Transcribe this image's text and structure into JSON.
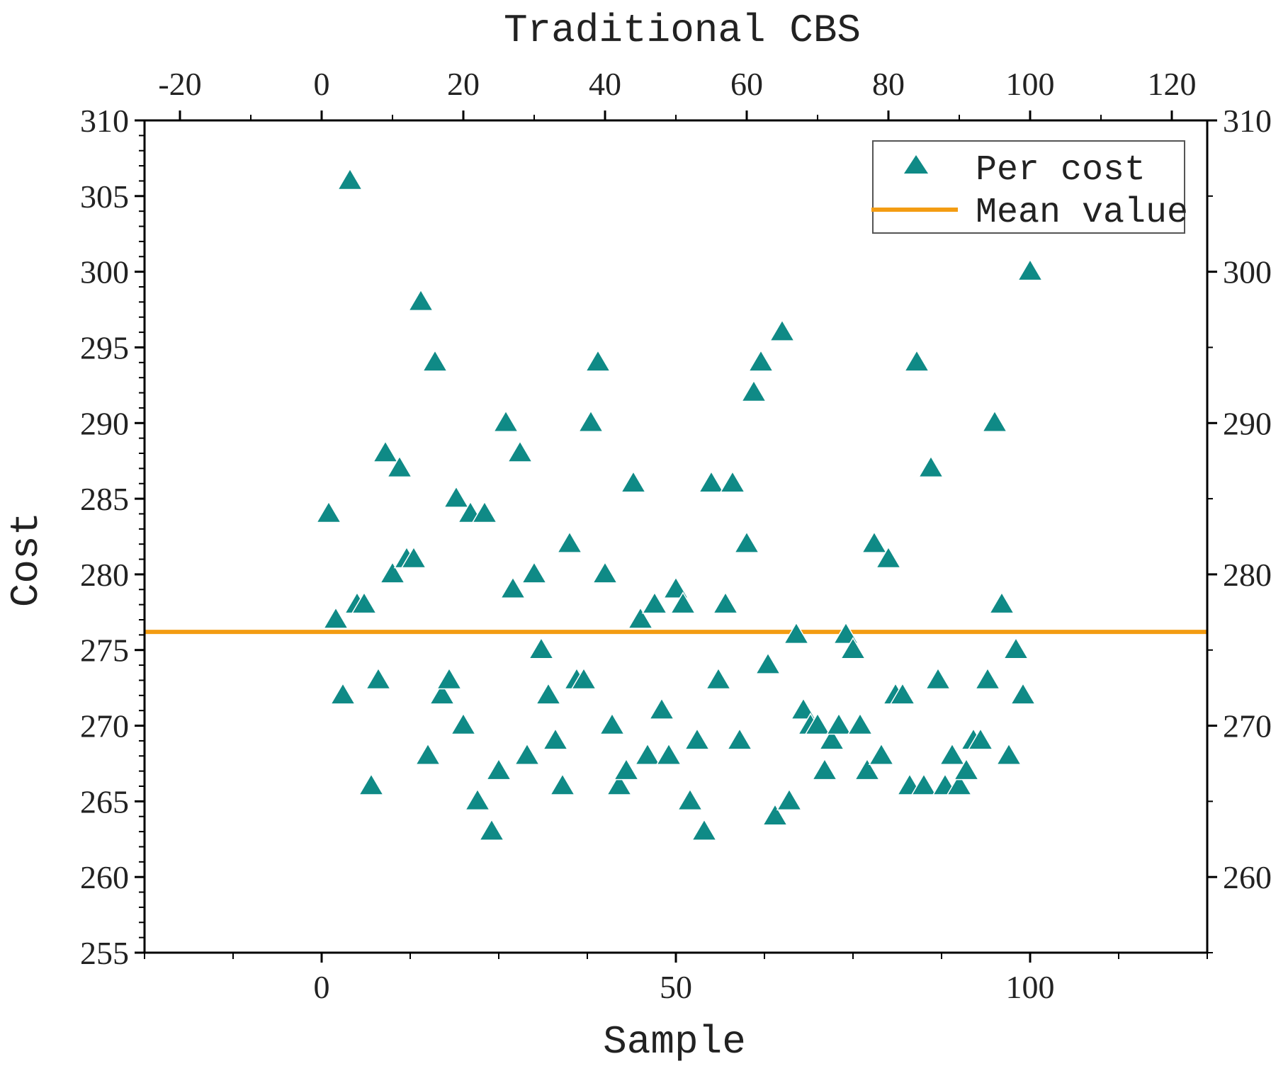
{
  "chart_data": {
    "type": "scatter",
    "title": "Traditional CBS",
    "xlabel": "Sample",
    "ylabel": "Cost",
    "xlim": [
      -25,
      125
    ],
    "ylim": [
      255,
      310
    ],
    "x_ticks": [
      0,
      50,
      100
    ],
    "x_minor_ticks": [
      -25,
      -12.5,
      12.5,
      25,
      37.5,
      62.5,
      75,
      87.5,
      112.5,
      125
    ],
    "top_ticks": [
      -20,
      0,
      20,
      40,
      60,
      80,
      100,
      120
    ],
    "y_ticks": [
      255,
      260,
      265,
      270,
      275,
      280,
      285,
      290,
      295,
      300,
      305,
      310
    ],
    "right_y_ticks": [
      260,
      270,
      280,
      290,
      300,
      310
    ],
    "grid": false,
    "legend_position": "top-right",
    "colors": {
      "points": "#0f8a86",
      "mean_line": "#f39c12",
      "axes": "#000000"
    },
    "series": [
      {
        "name": "Per cost",
        "marker": "triangle",
        "x": [
          1,
          2,
          3,
          4,
          5,
          6,
          7,
          8,
          9,
          10,
          11,
          12,
          13,
          14,
          15,
          16,
          17,
          18,
          19,
          20,
          21,
          22,
          23,
          24,
          25,
          26,
          27,
          28,
          29,
          30,
          31,
          32,
          33,
          34,
          35,
          36,
          37,
          38,
          39,
          40,
          41,
          42,
          43,
          44,
          45,
          46,
          47,
          48,
          49,
          50,
          51,
          52,
          53,
          54,
          55,
          56,
          57,
          58,
          59,
          60,
          61,
          62,
          63,
          64,
          65,
          66,
          67,
          68,
          69,
          70,
          71,
          72,
          73,
          74,
          75,
          76,
          77,
          78,
          79,
          80,
          81,
          82,
          83,
          84,
          85,
          86,
          87,
          88,
          89,
          90,
          91,
          92,
          93,
          94,
          95,
          96,
          97,
          98,
          99,
          100
        ],
        "y": [
          284,
          277,
          272,
          306,
          278,
          278,
          266,
          273,
          288,
          280,
          287,
          281,
          281,
          298,
          268,
          294,
          272,
          273,
          285,
          270,
          284,
          265,
          284,
          263,
          267,
          290,
          279,
          288,
          268,
          280,
          275,
          272,
          269,
          266,
          282,
          273,
          273,
          290,
          294,
          280,
          270,
          266,
          267,
          286,
          277,
          268,
          278,
          271,
          268,
          279,
          278,
          265,
          269,
          263,
          286,
          273,
          278,
          286,
          269,
          282,
          292,
          294,
          274,
          264,
          296,
          265,
          276,
          271,
          270,
          270,
          267,
          269,
          270,
          276,
          275,
          270,
          267,
          282,
          268,
          281,
          272,
          272,
          266,
          294,
          266,
          287,
          273,
          266,
          268,
          266,
          267,
          269,
          269,
          273,
          290,
          278,
          268,
          275,
          272,
          300
        ]
      },
      {
        "name": "Mean value",
        "type": "hline",
        "y": 276.2
      }
    ]
  }
}
